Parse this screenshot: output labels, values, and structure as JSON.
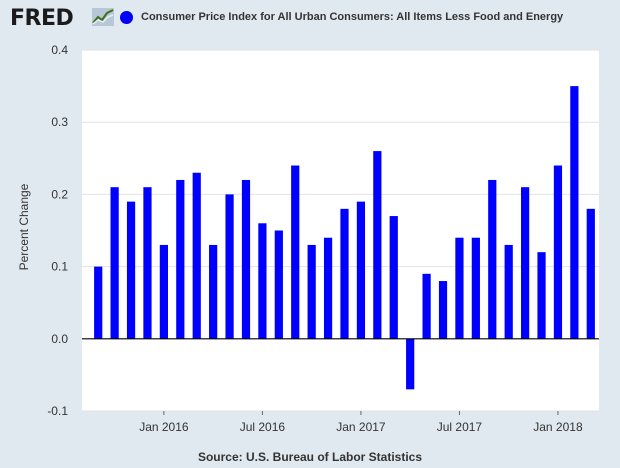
{
  "header": {
    "logo_text": "FRED",
    "legend_label": "Consumer Price Index for All Urban Consumers: All Items Less Food and Energy",
    "series_color": "#0000ff"
  },
  "source": "Source: U.S. Bureau of Labor Statistics",
  "chart_data": {
    "type": "bar",
    "ylabel": "Percent Change",
    "ylim": [
      -0.1,
      0.4
    ],
    "yticks": [
      "0.4",
      "0.3",
      "0.2",
      "0.1",
      "0.0",
      "-0.1"
    ],
    "xticks": [
      "Jan 2016",
      "Jul 2016",
      "Jan 2017",
      "Jul 2017",
      "Jan 2018"
    ],
    "grid": true,
    "series": [
      {
        "values": [
          0.1,
          0.21,
          0.19,
          0.21,
          0.13,
          0.22,
          0.23,
          0.13,
          0.2,
          0.22,
          0.16,
          0.15,
          0.24,
          0.13,
          0.14,
          0.18,
          0.19,
          0.26,
          0.17,
          -0.07,
          0.09,
          0.08,
          0.14,
          0.14,
          0.22,
          0.13,
          0.21,
          0.12,
          0.24,
          0.35,
          0.18
        ]
      }
    ]
  }
}
